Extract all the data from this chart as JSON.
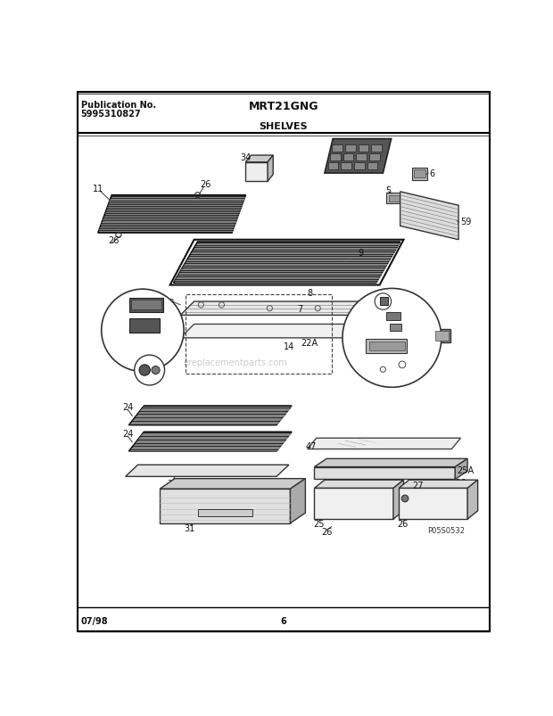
{
  "title_left_line1": "Publication No.",
  "title_left_line2": "5995310827",
  "title_center": "MRT21GNG",
  "subtitle": "SHELVES",
  "footer_left": "07/98",
  "footer_center": "6",
  "watermark": "replacementparts.com",
  "bg_color": "#ffffff",
  "border_color": "#000000",
  "text_color": "#111111",
  "fig_width": 6.2,
  "fig_height": 8.04,
  "dpi": 100
}
